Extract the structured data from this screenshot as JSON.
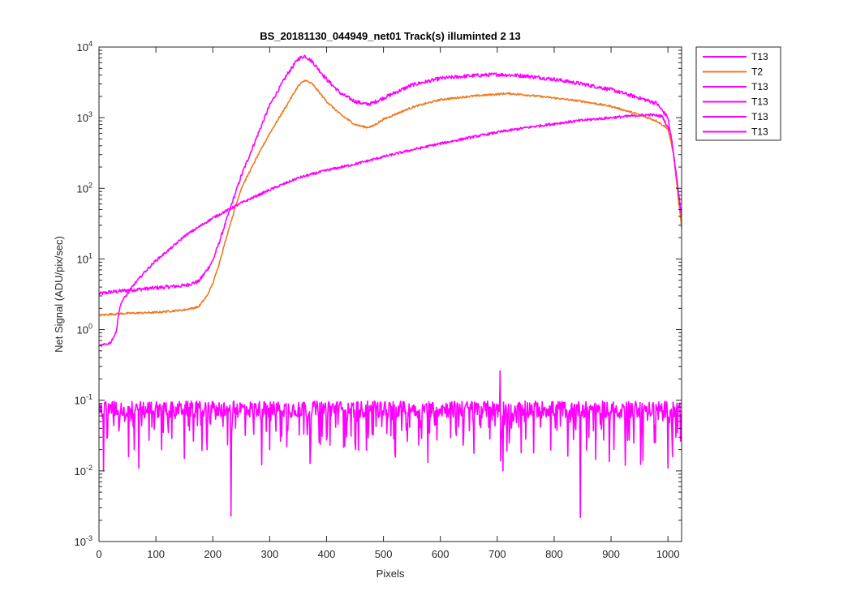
{
  "chart_data": {
    "type": "line",
    "title": "BS_20181130_044949_net01  Track(s) illuminted 2  13",
    "xlabel": "Pixels",
    "ylabel": "Net Signal (ADU/pix/sec)",
    "xlim": [
      0,
      1024
    ],
    "ylim": [
      0.001,
      10000
    ],
    "yscale": "log",
    "grid": false,
    "legend_position": "outside-top-right",
    "x_ticks": [
      {
        "value": 0,
        "label": "0"
      },
      {
        "value": 100,
        "label": "100"
      },
      {
        "value": 200,
        "label": "200"
      },
      {
        "value": 300,
        "label": "300"
      },
      {
        "value": 400,
        "label": "400"
      },
      {
        "value": 500,
        "label": "500"
      },
      {
        "value": 600,
        "label": "600"
      },
      {
        "value": 700,
        "label": "700"
      },
      {
        "value": 800,
        "label": "800"
      },
      {
        "value": 900,
        "label": "900"
      },
      {
        "value": 1000,
        "label": "1000"
      }
    ],
    "y_ticks": [
      {
        "value": 0.001,
        "base": "10",
        "exp": "-3"
      },
      {
        "value": 0.01,
        "base": "10",
        "exp": "-2"
      },
      {
        "value": 0.1,
        "base": "10",
        "exp": "-1"
      },
      {
        "value": 1,
        "base": "10",
        "exp": "0"
      },
      {
        "value": 10,
        "base": "10",
        "exp": "1"
      },
      {
        "value": 100,
        "base": "10",
        "exp": "2"
      },
      {
        "value": 1000,
        "base": "10",
        "exp": "3"
      },
      {
        "value": 10000,
        "base": "10",
        "exp": "4"
      }
    ],
    "series": [
      {
        "name": "T13",
        "color": "#ff00ff",
        "noise": 0.12,
        "x": [
          0,
          20,
          50,
          100,
          150,
          175,
          190,
          200,
          210,
          230,
          250,
          280,
          300,
          330,
          350,
          362,
          375,
          400,
          425,
          450,
          470,
          480,
          500,
          550,
          600,
          650,
          700,
          750,
          800,
          850,
          900,
          950,
          980,
          1000,
          1010,
          1024
        ],
        "y": [
          3.2,
          3.4,
          3.6,
          3.9,
          4.2,
          4.8,
          7,
          9.5,
          16,
          50,
          150,
          600,
          1500,
          4000,
          6800,
          7500,
          6200,
          3500,
          2200,
          1700,
          1550,
          1600,
          1900,
          2900,
          3600,
          3900,
          4100,
          3900,
          3500,
          3000,
          2500,
          1900,
          1600,
          1000,
          300,
          30
        ]
      },
      {
        "name": "T2",
        "color": "#f07820",
        "noise": 0.06,
        "x": [
          0,
          20,
          50,
          100,
          150,
          175,
          190,
          200,
          210,
          230,
          250,
          280,
          300,
          330,
          350,
          362,
          375,
          400,
          425,
          450,
          470,
          480,
          500,
          550,
          600,
          650,
          700,
          720,
          750,
          800,
          850,
          900,
          950,
          980,
          1000,
          1010,
          1024
        ],
        "y": [
          1.6,
          1.65,
          1.7,
          1.75,
          1.9,
          2.1,
          3,
          4.5,
          8,
          30,
          100,
          300,
          600,
          1500,
          2800,
          3400,
          3000,
          1700,
          1100,
          800,
          730,
          750,
          950,
          1400,
          1800,
          2000,
          2150,
          2200,
          2100,
          1900,
          1700,
          1450,
          1100,
          900,
          700,
          300,
          28
        ]
      },
      {
        "name": "T13",
        "color": "#ff00ff",
        "noise": 0.08,
        "x": [
          0,
          20,
          30,
          35,
          40,
          50,
          60,
          80,
          100,
          130,
          150,
          200,
          250,
          300,
          350,
          400,
          450,
          500,
          550,
          600,
          650,
          700,
          750,
          800,
          850,
          900,
          950,
          970,
          990,
          1005,
          1015,
          1024
        ],
        "y": [
          0.58,
          0.65,
          0.9,
          1.8,
          2.5,
          3.2,
          4.2,
          6.5,
          9.5,
          15,
          21,
          38,
          62,
          95,
          140,
          180,
          220,
          280,
          350,
          430,
          520,
          620,
          720,
          820,
          920,
          1000,
          1080,
          1100,
          1050,
          600,
          150,
          40
        ]
      },
      {
        "name": "T13",
        "color": "#ff00ff",
        "noise": 0.0,
        "x": [],
        "y": []
      },
      {
        "name": "T13",
        "color": "#ff00ff",
        "noise": 0.0,
        "x": [],
        "y": []
      },
      {
        "name": "T13",
        "color": "#ff00ff",
        "noise": 0.35,
        "noise_floor": true,
        "x": [
          0,
          1024
        ],
        "y": [
          0.075,
          0.075
        ],
        "spikes": [
          {
            "x": 8,
            "y": 0.01
          },
          {
            "x": 62,
            "y": 0.02
          },
          {
            "x": 70,
            "y": 0.011
          },
          {
            "x": 110,
            "y": 0.02
          },
          {
            "x": 150,
            "y": 0.015
          },
          {
            "x": 190,
            "y": 0.02
          },
          {
            "x": 232,
            "y": 0.0023
          },
          {
            "x": 300,
            "y": 0.02
          },
          {
            "x": 330,
            "y": 0.022
          },
          {
            "x": 450,
            "y": 0.025
          },
          {
            "x": 705,
            "y": 0.26
          },
          {
            "x": 710,
            "y": 0.01
          },
          {
            "x": 846,
            "y": 0.0022
          },
          {
            "x": 925,
            "y": 0.012
          },
          {
            "x": 1000,
            "y": 0.011
          }
        ]
      }
    ]
  }
}
